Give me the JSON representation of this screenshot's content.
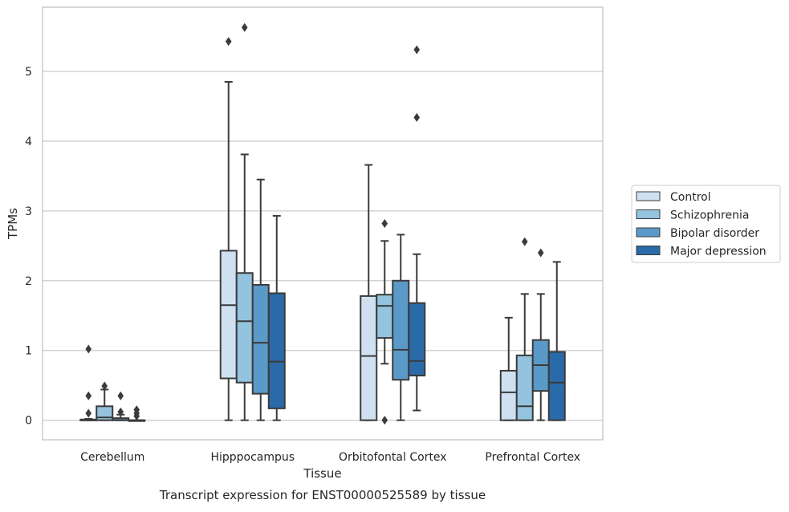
{
  "caption": "Transcript expression for ENST00000525589 by tissue",
  "chart_data": {
    "type": "box",
    "xlabel": "Tissue",
    "ylabel": "TPMs",
    "ylim": [
      -0.28,
      5.92
    ],
    "yticks": [
      0,
      1,
      2,
      3,
      4,
      5
    ],
    "grid": "horizontal",
    "legend_position": "right",
    "categories": [
      "Cerebellum",
      "Hipppocampus",
      "Orbitofontal Cortex",
      "Prefrontal Cortex"
    ],
    "series": [
      {
        "name": "Control",
        "color": "#cfe0f1",
        "boxes": [
          {
            "q1": 0.0,
            "median": 0.0,
            "q3": 0.01,
            "whisker_low": 0.0,
            "whisker_high": 0.02,
            "outliers": [
              0.1,
              0.35,
              1.02
            ]
          },
          {
            "q1": 0.6,
            "median": 1.65,
            "q3": 2.43,
            "whisker_low": 0.0,
            "whisker_high": 4.85,
            "outliers": [
              5.43
            ]
          },
          {
            "q1": 0.0,
            "median": 0.92,
            "q3": 1.78,
            "whisker_low": 0.0,
            "whisker_high": 3.66,
            "outliers": []
          },
          {
            "q1": 0.0,
            "median": 0.4,
            "q3": 0.71,
            "whisker_low": 0.0,
            "whisker_high": 1.47,
            "outliers": []
          }
        ]
      },
      {
        "name": "Schizophrenia",
        "color": "#94c3df",
        "boxes": [
          {
            "q1": 0.0,
            "median": 0.04,
            "q3": 0.2,
            "whisker_low": 0.0,
            "whisker_high": 0.44,
            "outliers": [
              0.49
            ]
          },
          {
            "q1": 0.54,
            "median": 1.42,
            "q3": 2.11,
            "whisker_low": 0.0,
            "whisker_high": 3.81,
            "outliers": [
              5.63
            ]
          },
          {
            "q1": 1.18,
            "median": 1.64,
            "q3": 1.8,
            "whisker_low": 0.81,
            "whisker_high": 2.57,
            "outliers": [
              0.0,
              2.82
            ]
          },
          {
            "q1": 0.0,
            "median": 0.2,
            "q3": 0.93,
            "whisker_low": 0.0,
            "whisker_high": 1.81,
            "outliers": [
              2.56
            ]
          }
        ]
      },
      {
        "name": "Bipolar disorder",
        "color": "#5a9ac8",
        "boxes": [
          {
            "q1": 0.0,
            "median": 0.0,
            "q3": 0.03,
            "whisker_low": 0.0,
            "whisker_high": 0.08,
            "outliers": [
              0.12,
              0.35
            ]
          },
          {
            "q1": 0.38,
            "median": 1.11,
            "q3": 1.94,
            "whisker_low": 0.0,
            "whisker_high": 3.45,
            "outliers": []
          },
          {
            "q1": 0.58,
            "median": 1.01,
            "q3": 2.0,
            "whisker_low": 0.0,
            "whisker_high": 2.66,
            "outliers": []
          },
          {
            "q1": 0.42,
            "median": 0.79,
            "q3": 1.15,
            "whisker_low": 0.0,
            "whisker_high": 1.81,
            "outliers": [
              2.4
            ]
          }
        ]
      },
      {
        "name": "Major depression",
        "color": "#2b6aa8",
        "boxes": [
          {
            "q1": 0.0,
            "median": 0.0,
            "q3": 0.0,
            "whisker_low": 0.0,
            "whisker_high": 0.0,
            "outliers": [
              0.06,
              0.1,
              0.15
            ]
          },
          {
            "q1": 0.17,
            "median": 0.84,
            "q3": 1.82,
            "whisker_low": 0.0,
            "whisker_high": 2.93,
            "outliers": []
          },
          {
            "q1": 0.64,
            "median": 0.85,
            "q3": 1.68,
            "whisker_low": 0.14,
            "whisker_high": 2.38,
            "outliers": [
              4.34,
              5.31
            ]
          },
          {
            "q1": 0.0,
            "median": 0.54,
            "q3": 0.98,
            "whisker_low": 0.0,
            "whisker_high": 2.27,
            "outliers": []
          }
        ]
      }
    ]
  }
}
